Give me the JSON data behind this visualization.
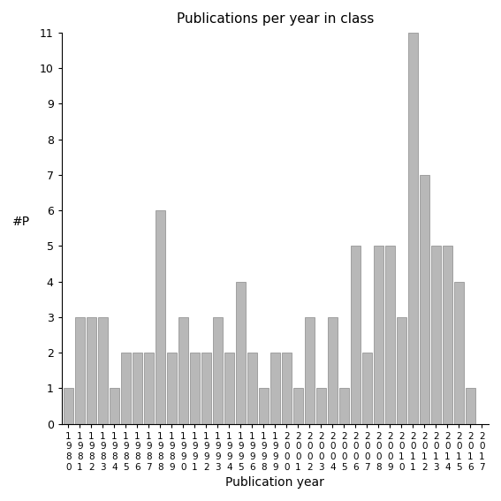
{
  "title": "Publications per year in class",
  "xlabel": "Publication year",
  "ylabel": "#P",
  "bar_color": "#b8b8b8",
  "edge_color": "#888888",
  "background_color": "#ffffff",
  "years": [
    "1980",
    "1981",
    "1982",
    "1983",
    "1984",
    "1985",
    "1986",
    "1987",
    "1988",
    "1989",
    "1990",
    "1991",
    "1992",
    "1993",
    "1994",
    "1995",
    "1996",
    "1998",
    "1999",
    "2000",
    "2001",
    "2002",
    "2003",
    "2004",
    "2005",
    "2006",
    "2007",
    "2008",
    "2009",
    "2010",
    "2011",
    "2012",
    "2013",
    "2014",
    "2015",
    "2016",
    "2017"
  ],
  "values": [
    1,
    3,
    3,
    3,
    1,
    2,
    2,
    2,
    6,
    2,
    3,
    2,
    2,
    3,
    2,
    4,
    2,
    1,
    2,
    2,
    1,
    3,
    1,
    3,
    1,
    5,
    2,
    5,
    5,
    3,
    11,
    7,
    5,
    5,
    4,
    1,
    0
  ],
  "ylim": [
    0,
    11
  ],
  "yticks": [
    0,
    1,
    2,
    3,
    4,
    5,
    6,
    7,
    8,
    9,
    10,
    11
  ]
}
